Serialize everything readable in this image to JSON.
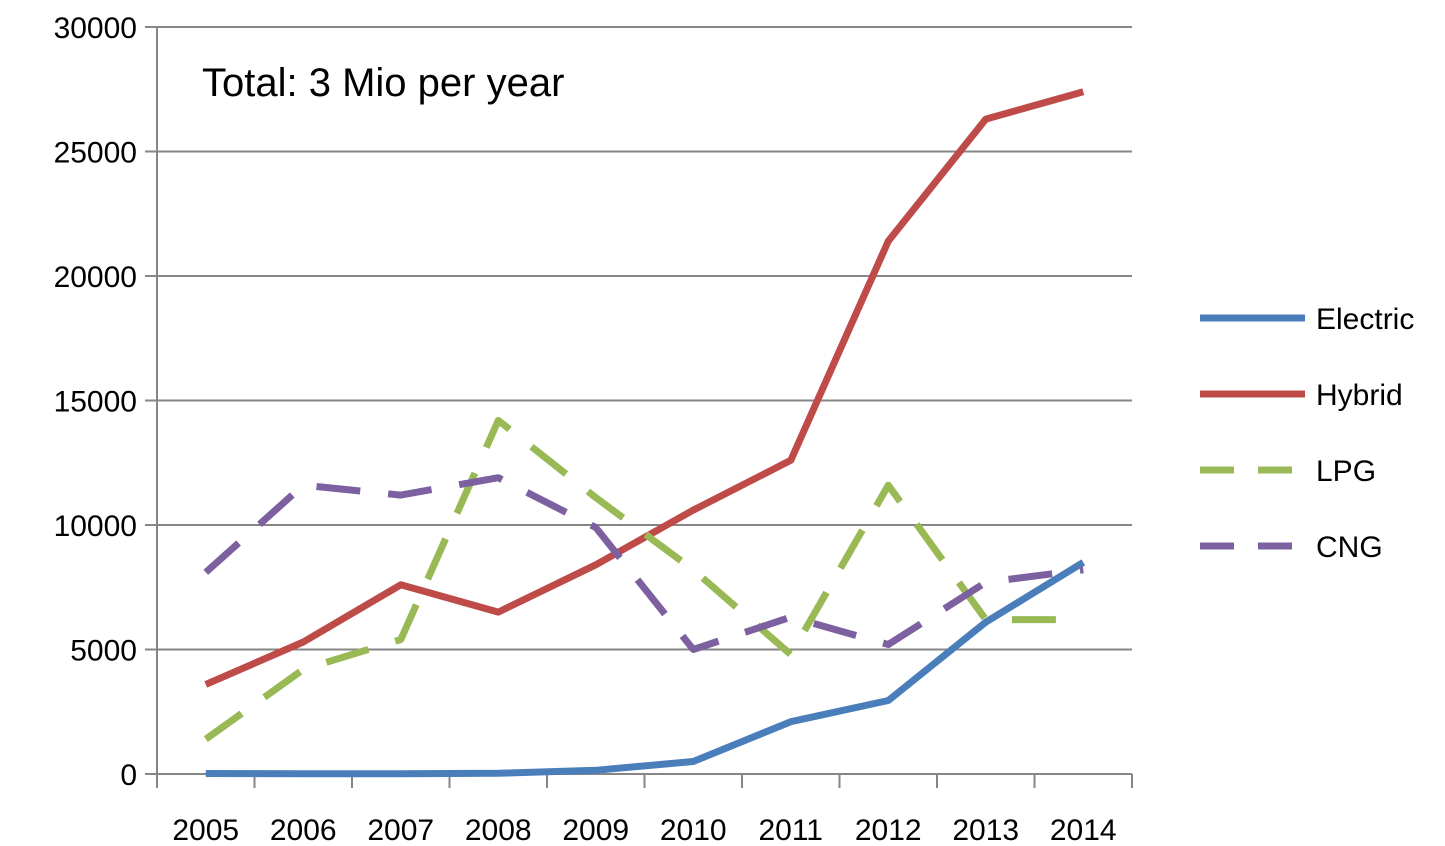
{
  "chart_data": {
    "type": "line",
    "title": "",
    "xlabel": "",
    "ylabel": "",
    "annotation": "Total: 3 Mio per year",
    "categories": [
      "2005",
      "2006",
      "2007",
      "2008",
      "2009",
      "2010",
      "2011",
      "2012",
      "2013",
      "2014"
    ],
    "ylim": [
      0,
      30000
    ],
    "yticks": [
      "0",
      "5000",
      "10000",
      "15000",
      "20000",
      "25000",
      "30000"
    ],
    "grid": true,
    "legend_position": "right",
    "series": [
      {
        "name": "Electric",
        "color": "#4a7ebb",
        "dashed": false,
        "values": [
          20,
          10,
          10,
          30,
          150,
          500,
          2100,
          2950,
          6100,
          8500
        ]
      },
      {
        "name": "Hybrid",
        "color": "#be4b48",
        "dashed": false,
        "values": [
          3600,
          5300,
          7600,
          6500,
          8400,
          10600,
          12600,
          21400,
          26300,
          27400
        ]
      },
      {
        "name": "LPG",
        "color": "#98b954",
        "dashed": true,
        "values": [
          1400,
          4200,
          5400,
          14200,
          11100,
          8200,
          4800,
          11600,
          6200,
          6200
        ]
      },
      {
        "name": "CNG",
        "color": "#7d60a0",
        "dashed": true,
        "values": [
          8100,
          11600,
          11200,
          11900,
          9900,
          5000,
          6300,
          5200,
          7700,
          8200
        ]
      }
    ]
  }
}
